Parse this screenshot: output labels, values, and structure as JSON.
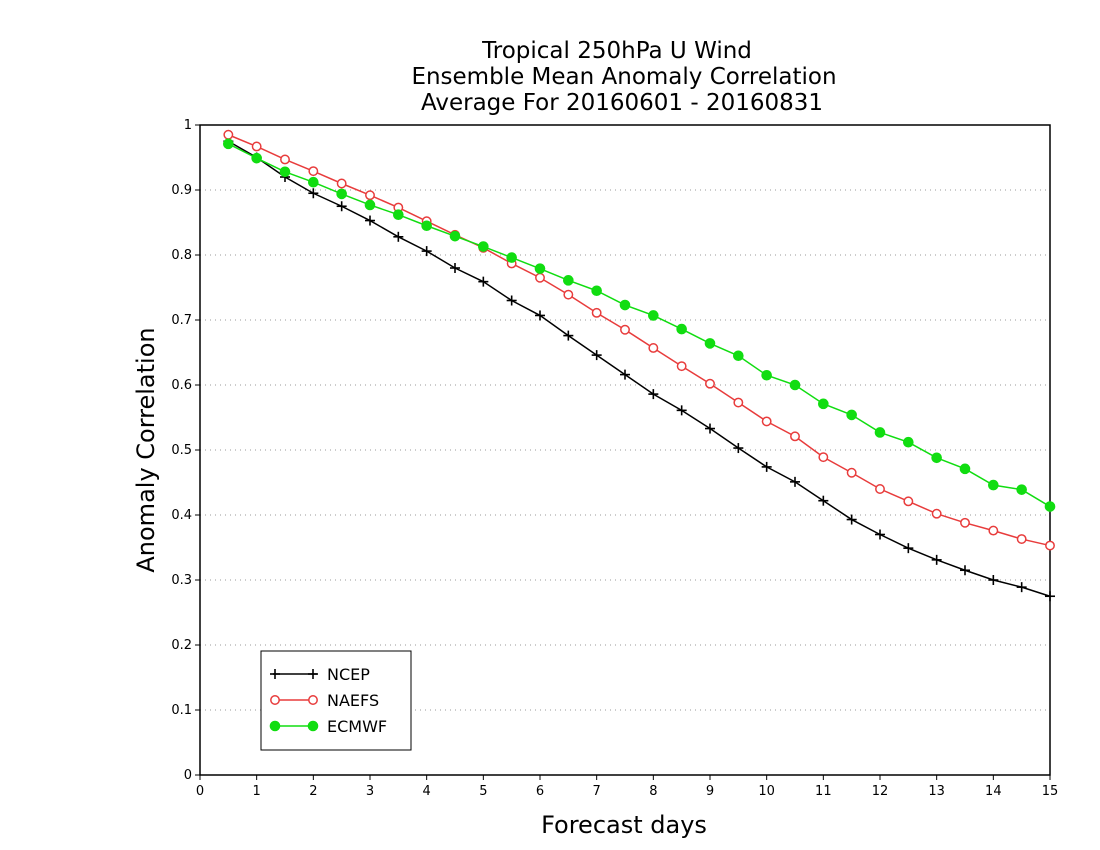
{
  "chart_data": {
    "type": "line",
    "title_lines": [
      "Tropical 250hPa U Wind",
      "Ensemble Mean Anomaly Correlation",
      "Average For 20160601 - 20160831"
    ],
    "xlabel": "Forecast days",
    "ylabel": "Anomaly Correlation",
    "xlim": [
      0,
      15
    ],
    "ylim": [
      0,
      1
    ],
    "xticks": [
      0,
      1,
      2,
      3,
      4,
      5,
      6,
      7,
      8,
      9,
      10,
      11,
      12,
      13,
      14,
      15
    ],
    "xtick_labels": [
      "0",
      "1",
      "2",
      "3",
      "4",
      "5",
      "6",
      "7",
      "8",
      "9",
      "10",
      "11",
      "12",
      "13",
      "14",
      "15"
    ],
    "yticks": [
      0,
      0.1,
      0.2,
      0.3,
      0.4,
      0.5,
      0.6,
      0.7,
      0.8,
      0.9,
      1
    ],
    "ytick_labels": [
      "0",
      "0.1",
      "0.2",
      "0.3",
      "0.4",
      "0.5",
      "0.6",
      "0.7",
      "0.8",
      "0.9",
      "1"
    ],
    "grid": true,
    "legend_position": "bottom-left",
    "x": [
      0.5,
      1.0,
      1.5,
      2.0,
      2.5,
      3.0,
      3.5,
      4.0,
      4.5,
      5.0,
      5.5,
      6.0,
      6.5,
      7.0,
      7.5,
      8.0,
      8.5,
      9.0,
      9.5,
      10.0,
      10.5,
      11.0,
      11.5,
      12.0,
      12.5,
      13.0,
      13.5,
      14.0,
      14.5,
      15.0
    ],
    "series": [
      {
        "name": "NCEP",
        "color": "#000000",
        "marker": "plus",
        "values": [
          0.975,
          0.95,
          0.92,
          0.895,
          0.875,
          0.853,
          0.828,
          0.806,
          0.78,
          0.759,
          0.73,
          0.707,
          0.676,
          0.646,
          0.616,
          0.586,
          0.561,
          0.533,
          0.503,
          0.474,
          0.451,
          0.422,
          0.393,
          0.37,
          0.349,
          0.331,
          0.315,
          0.3,
          0.289,
          0.275
        ]
      },
      {
        "name": "NAEFS",
        "color": "#e83c3c",
        "marker": "open-circle",
        "values": [
          0.985,
          0.967,
          0.947,
          0.929,
          0.91,
          0.892,
          0.873,
          0.852,
          0.831,
          0.811,
          0.787,
          0.765,
          0.739,
          0.711,
          0.685,
          0.657,
          0.629,
          0.602,
          0.573,
          0.544,
          0.521,
          0.489,
          0.465,
          0.44,
          0.421,
          0.402,
          0.388,
          0.376,
          0.363,
          0.353
        ]
      },
      {
        "name": "ECMWF",
        "color": "#11dd11",
        "marker": "filled-circle",
        "values": [
          0.971,
          0.949,
          0.928,
          0.912,
          0.894,
          0.877,
          0.862,
          0.845,
          0.829,
          0.813,
          0.796,
          0.779,
          0.761,
          0.745,
          0.723,
          0.707,
          0.686,
          0.664,
          0.645,
          0.615,
          0.6,
          0.571,
          0.554,
          0.527,
          0.512,
          0.488,
          0.471,
          0.446,
          0.439,
          0.413
        ]
      }
    ]
  }
}
